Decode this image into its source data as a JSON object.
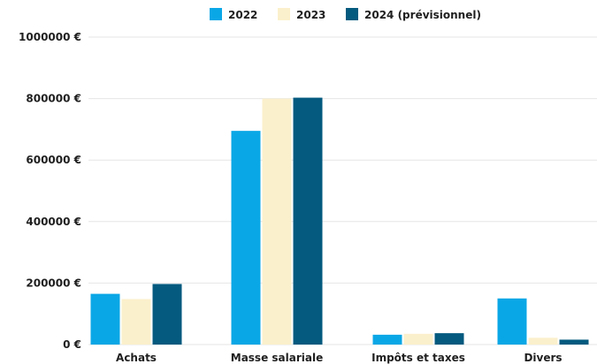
{
  "chart_data": {
    "type": "bar",
    "title": "",
    "xlabel": "",
    "ylabel": "",
    "categories": [
      "Achats",
      "Masse salariale",
      "Impôts et taxes",
      "Divers"
    ],
    "series": [
      {
        "name": "2022",
        "color": "#0aa7e6",
        "values": [
          165000,
          695000,
          32000,
          150000
        ]
      },
      {
        "name": "2023",
        "color": "#fbf0cc",
        "values": [
          148000,
          800000,
          35000,
          22000
        ]
      },
      {
        "name": "2024 (prévisionnel)",
        "color": "#045a7f",
        "values": [
          197000,
          803000,
          37000,
          16000
        ]
      }
    ],
    "ylim": [
      0,
      1000000
    ],
    "yticks": [
      0,
      200000,
      400000,
      600000,
      800000,
      1000000
    ],
    "ytick_labels": [
      "0 €",
      "200000 €",
      "400000 €",
      "600000 €",
      "800000 €",
      "1000000 €"
    ],
    "grid": true,
    "legend_position": "top-center"
  }
}
